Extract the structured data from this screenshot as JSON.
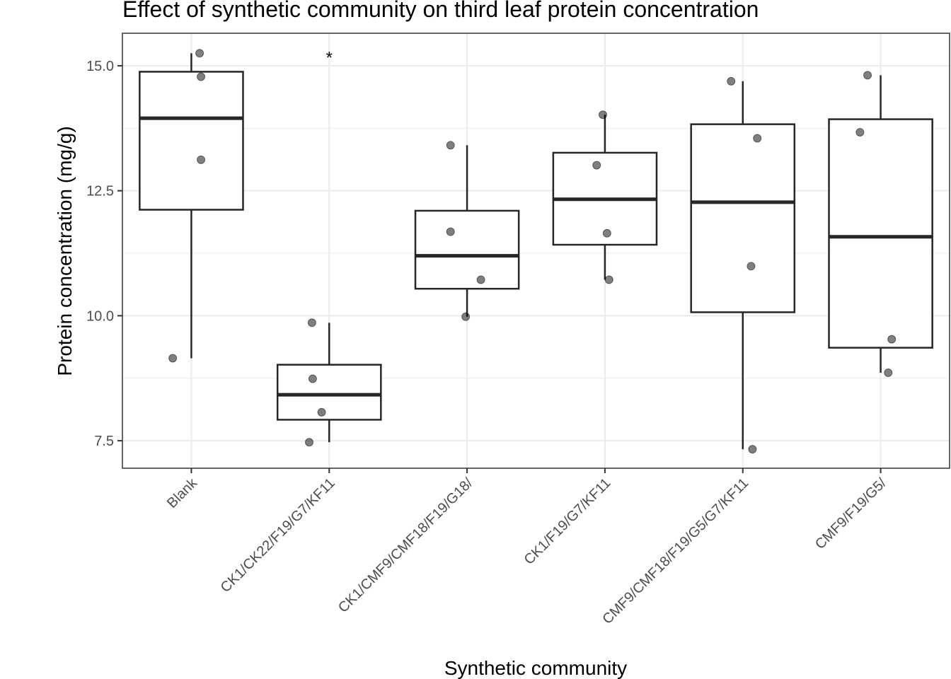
{
  "chart_data": {
    "type": "box",
    "title": "Effect of synthetic community on third leaf protein concentration",
    "xlabel": "Synthetic community",
    "ylabel": "Protein concentration (mg/g)",
    "ylim": [
      6.95,
      15.65
    ],
    "yticks": [
      "7.5",
      "10.0",
      "12.5",
      "15.0"
    ],
    "ytick_values": [
      7.5,
      10.0,
      12.5,
      15.0
    ],
    "y_minor_values": [
      8.75,
      11.25,
      13.75
    ],
    "grid": true,
    "categories": [
      "Blank",
      "CK1/CK22/F19/G7/KF11",
      "CK1/CMF9/CMF18/F19/G18/",
      "CK1/F19/G7/KF11",
      "CMF9/CMF18/F19/G5/G7/KF11",
      "CMF9/F19/G5/"
    ],
    "boxes": [
      {
        "category": "Blank",
        "whisker_low": 9.15,
        "q1": 12.12,
        "median": 13.95,
        "q3": 14.88,
        "whisker_high": 15.25,
        "points": [
          15.25,
          14.78,
          13.12,
          9.15
        ]
      },
      {
        "category": "CK1/CK22/F19/G7/KF11",
        "whisker_low": 7.47,
        "q1": 7.92,
        "median": 8.42,
        "q3": 9.02,
        "whisker_high": 9.86,
        "points": [
          9.86,
          8.74,
          8.07,
          7.47
        ]
      },
      {
        "category": "CK1/CMF9/CMF18/F19/G18/",
        "whisker_low": 9.98,
        "q1": 10.54,
        "median": 11.2,
        "q3": 12.1,
        "whisker_high": 13.41,
        "points": [
          13.41,
          11.68,
          10.72,
          9.98
        ]
      },
      {
        "category": "CK1/F19/G7/KF11",
        "whisker_low": 10.72,
        "q1": 11.42,
        "median": 12.33,
        "q3": 13.26,
        "whisker_high": 14.02,
        "points": [
          14.02,
          13.01,
          11.65,
          10.72
        ]
      },
      {
        "category": "CMF9/CMF18/F19/G5/G7/KF11",
        "whisker_low": 7.33,
        "q1": 10.07,
        "median": 12.27,
        "q3": 13.83,
        "whisker_high": 14.69,
        "points": [
          14.69,
          13.55,
          10.99,
          7.33
        ]
      },
      {
        "category": "CMF9/F19/G5/",
        "whisker_low": 8.86,
        "q1": 9.36,
        "median": 11.58,
        "q3": 13.93,
        "whisker_high": 14.81,
        "points": [
          14.81,
          13.67,
          9.53,
          8.86
        ]
      }
    ],
    "annotations": [
      {
        "category": "CK1/CK22/F19/G7/KF11",
        "text": "*",
        "y": 15.25
      }
    ]
  }
}
